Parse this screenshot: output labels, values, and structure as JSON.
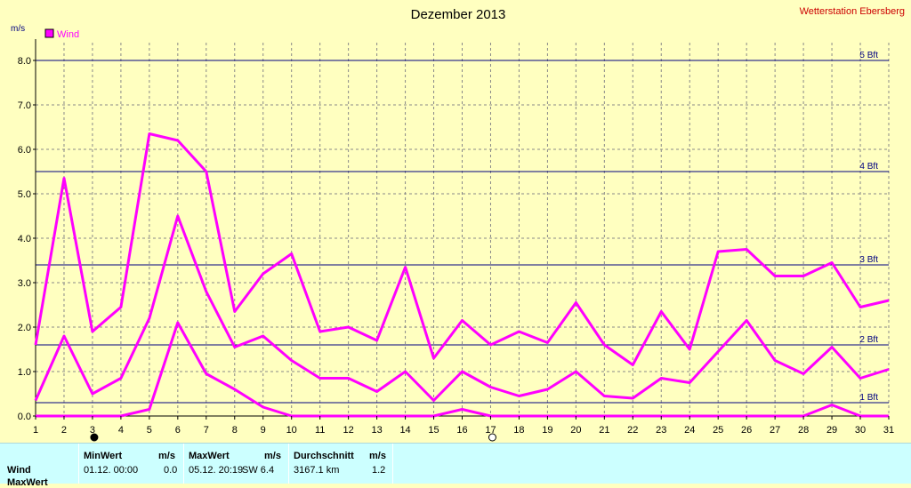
{
  "chart_data": {
    "type": "line",
    "title": "Dezember 2013",
    "station": "Wetterstation Ebersberg",
    "ylabel": "m/s",
    "ylim": [
      0,
      8.4
    ],
    "y_ticks": [
      "0.0",
      "1.0",
      "2.0",
      "3.0",
      "4.0",
      "5.0",
      "6.0",
      "7.0",
      "8.0"
    ],
    "x": [
      1,
      2,
      3,
      4,
      5,
      6,
      7,
      8,
      9,
      10,
      11,
      12,
      13,
      14,
      15,
      16,
      17,
      18,
      19,
      20,
      21,
      22,
      23,
      24,
      25,
      26,
      27,
      28,
      29,
      30,
      31
    ],
    "legend": "Wind",
    "grid": true,
    "beaufort_lines": [
      {
        "label": "1 Bft",
        "value": 0.3
      },
      {
        "label": "2 Bft",
        "value": 1.6
      },
      {
        "label": "3 Bft",
        "value": 3.4
      },
      {
        "label": "4 Bft",
        "value": 5.5
      },
      {
        "label": "5 Bft",
        "value": 8.0
      }
    ],
    "series": [
      {
        "role": "max",
        "values": [
          1.6,
          5.35,
          1.9,
          2.45,
          6.35,
          6.2,
          5.5,
          2.35,
          3.2,
          3.65,
          1.9,
          2.0,
          1.7,
          3.35,
          1.3,
          2.15,
          1.6,
          1.9,
          1.65,
          2.55,
          1.6,
          1.15,
          2.35,
          1.5,
          3.7,
          3.75,
          3.15,
          3.15,
          3.45,
          2.45,
          2.6
        ]
      },
      {
        "role": "avg",
        "values": [
          0.35,
          1.8,
          0.5,
          0.85,
          2.2,
          4.5,
          2.8,
          1.55,
          1.8,
          1.25,
          0.85,
          0.85,
          0.55,
          1.0,
          0.35,
          1.0,
          0.65,
          0.45,
          0.6,
          1.0,
          0.45,
          0.4,
          0.85,
          0.75,
          1.45,
          2.15,
          1.25,
          0.95,
          1.55,
          0.85,
          1.05
        ]
      },
      {
        "role": "min",
        "values": [
          0,
          0,
          0,
          0,
          0.15,
          2.1,
          0.95,
          0.6,
          0.2,
          0,
          0,
          0,
          0,
          0,
          0,
          0.15,
          0,
          0,
          0,
          0,
          0,
          0,
          0,
          0,
          0,
          0,
          0,
          0,
          0.25,
          0,
          0
        ]
      }
    ],
    "moon_markers": [
      {
        "day": 3,
        "phase": "new-moon"
      },
      {
        "day": 17,
        "phase": "full-moon"
      }
    ],
    "colors": {
      "series": "#ff00ff",
      "bft": "#000080",
      "grid": "#888888",
      "background": "#ffffc0",
      "station": "#cc0000"
    }
  },
  "stats": {
    "row_label": "Wind",
    "row2_label": "MaxWert",
    "headers": {
      "min": "MinWert",
      "min_unit": "m/s",
      "max": "MaxWert",
      "max_unit": "m/s",
      "avg": "Durchschnitt",
      "avg_unit": "m/s"
    },
    "min_date": "01.12.  00:00",
    "min_value": "0.0",
    "max_date": "05.12.  20:19",
    "max_dir_value": "SW 6.4",
    "avg_distance": "3167.1 km",
    "avg_value": "1.2"
  }
}
